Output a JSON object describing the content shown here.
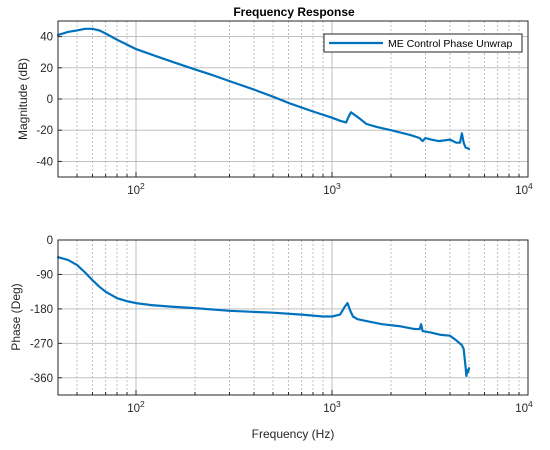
{
  "chart_data": [
    {
      "type": "line",
      "title": "Frequency Response",
      "xlabel": "",
      "ylabel": "Magnitude (dB)",
      "xscale": "log",
      "xlim": [
        40,
        10000
      ],
      "ylim": [
        -50,
        50
      ],
      "yticks": [
        40,
        20,
        0,
        -20,
        -40
      ],
      "xtick_labels": [
        {
          "base": "10",
          "exp": "2",
          "value": 100
        },
        {
          "base": "10",
          "exp": "3",
          "value": 1000
        },
        {
          "base": "10",
          "exp": "4",
          "value": 10000
        }
      ],
      "grid": true,
      "legend": {
        "location": "top-right",
        "entries": [
          "ME Control Phase Unwrap"
        ]
      },
      "series": [
        {
          "name": "ME Control Phase Unwrap",
          "color": "#0072BD",
          "x": [
            40,
            45,
            50,
            55,
            60,
            65,
            70,
            80,
            100,
            130,
            160,
            200,
            250,
            300,
            400,
            500,
            600,
            800,
            1000,
            1100,
            1180,
            1220,
            1250,
            1300,
            1400,
            1500,
            1700,
            2000,
            2500,
            2800,
            2900,
            3000,
            3200,
            3500,
            4000,
            4300,
            4500,
            4600,
            4700,
            4800,
            5000
          ],
          "y": [
            41,
            43,
            44,
            45,
            45,
            44,
            42,
            38,
            32,
            27,
            23,
            19,
            15,
            11.5,
            6,
            1.5,
            -2.5,
            -8,
            -12,
            -14,
            -15,
            -11,
            -8.5,
            -10,
            -13,
            -16,
            -18,
            -20,
            -23,
            -25,
            -27,
            -25,
            -26,
            -27,
            -26,
            -28,
            -28,
            -22,
            -28,
            -31,
            -32
          ]
        }
      ]
    },
    {
      "type": "line",
      "title": "",
      "xlabel": "Frequency (Hz)",
      "ylabel": "Phase (Deg)",
      "xscale": "log",
      "xlim": [
        40,
        10000
      ],
      "ylim": [
        -405,
        0
      ],
      "yticks": [
        0,
        -90,
        -180,
        -270,
        -360
      ],
      "xtick_labels": [
        {
          "base": "10",
          "exp": "2",
          "value": 100
        },
        {
          "base": "10",
          "exp": "3",
          "value": 1000
        },
        {
          "base": "10",
          "exp": "4",
          "value": 10000
        }
      ],
      "grid": true,
      "series": [
        {
          "color": "#0072BD",
          "x": [
            40,
            45,
            50,
            55,
            60,
            65,
            70,
            80,
            90,
            100,
            120,
            150,
            200,
            300,
            500,
            700,
            900,
            1000,
            1100,
            1160,
            1200,
            1240,
            1280,
            1350,
            1500,
            1800,
            2200,
            2600,
            2800,
            2850,
            2900,
            3200,
            3600,
            4000,
            4300,
            4600,
            4700,
            4800,
            4850,
            4900,
            4950,
            5000
          ],
          "y": [
            -45,
            -52,
            -65,
            -85,
            -105,
            -122,
            -135,
            -152,
            -160,
            -165,
            -170,
            -174,
            -178,
            -185,
            -190,
            -195,
            -200,
            -200,
            -195,
            -175,
            -165,
            -185,
            -200,
            -207,
            -212,
            -220,
            -225,
            -232,
            -233,
            -220,
            -238,
            -242,
            -248,
            -250,
            -262,
            -275,
            -285,
            -330,
            -355,
            -340,
            -345,
            -335
          ]
        }
      ]
    }
  ]
}
